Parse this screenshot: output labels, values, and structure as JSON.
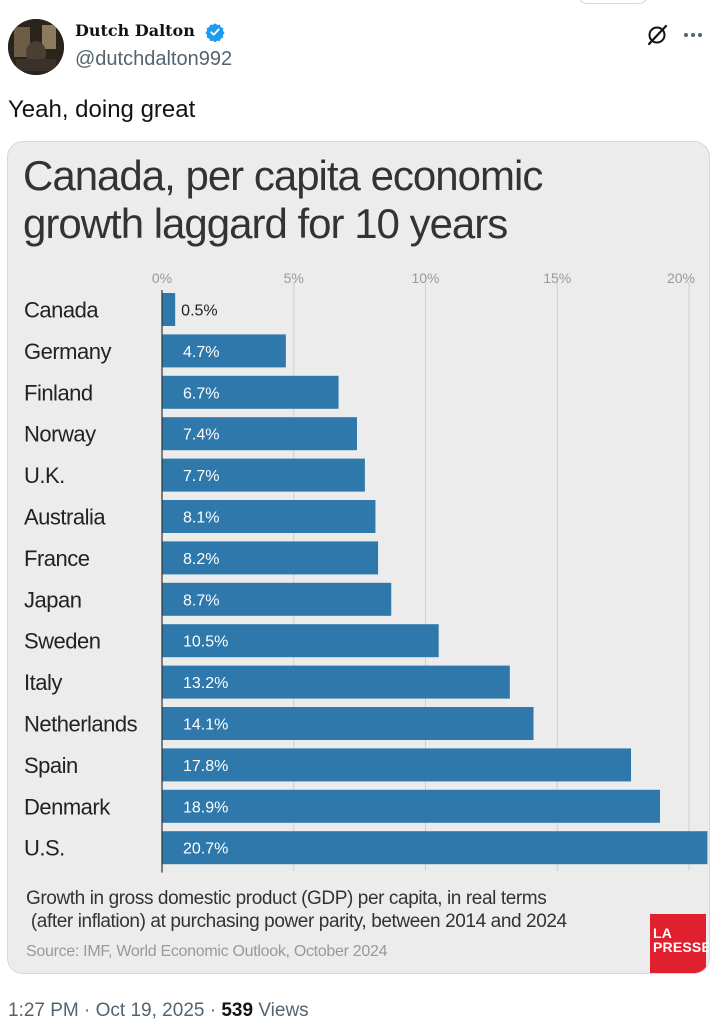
{
  "tweet": {
    "author_name": "Dutch Dalton",
    "handle": "@dutchdalton992",
    "text": "Yeah, doing great",
    "time": "1:27 PM",
    "date": "Oct 19, 2025",
    "separator": "·",
    "views_count": "539",
    "views_label": "Views",
    "verified": true,
    "icons": [
      "avatar",
      "verified-badge-icon",
      "grok-icon",
      "more-options-icon"
    ]
  },
  "colors": {
    "bar": "#2e78ab",
    "text": "#0f1419",
    "muted": "#536471",
    "verified": "#1d9bf0",
    "logo": "#e0202e"
  },
  "chart_data": {
    "type": "bar",
    "orientation": "horizontal",
    "title": "Canada, per capita economic growth laggard for 10 years",
    "title_lines": [
      "Canada, per capita economic",
      "growth laggard for 10 years"
    ],
    "categories": [
      "Canada",
      "Germany",
      "Finland",
      "Norway",
      "U.K.",
      "Australia",
      "France",
      "Japan",
      "Sweden",
      "Italy",
      "Netherlands",
      "Spain",
      "Denmark",
      "U.S."
    ],
    "values": [
      0.5,
      4.7,
      6.7,
      7.4,
      7.7,
      8.1,
      8.2,
      8.7,
      10.5,
      13.2,
      14.1,
      17.8,
      18.9,
      20.7
    ],
    "value_labels": [
      "0.5%",
      "4.7%",
      "6.7%",
      "7.4%",
      "7.7%",
      "8.1%",
      "8.2%",
      "8.7%",
      "10.5%",
      "13.2%",
      "14.1%",
      "17.8%",
      "18.9%",
      "20.7%"
    ],
    "ticks": [
      0,
      5,
      10,
      15,
      20
    ],
    "tick_labels": [
      "0%",
      "5%",
      "10%",
      "15%",
      "20%"
    ],
    "xlim": [
      0,
      20.7
    ],
    "xlabel": "",
    "ylabel": "",
    "grid": true,
    "footnote": "Growth in gross domestic product (GDP) per capita, in real terms (after inflation) at purchasing power parity, between 2014 and 2024",
    "footnote_lines": [
      "Growth in gross domestic product (GDP) per capita, in real terms",
      " (after inflation) at purchasing power parity, between 2014 and 2024"
    ],
    "source": "Source: IMF, World Economic Outlook, October 2024",
    "logo_lines": [
      "LA",
      "PRESSE"
    ]
  }
}
